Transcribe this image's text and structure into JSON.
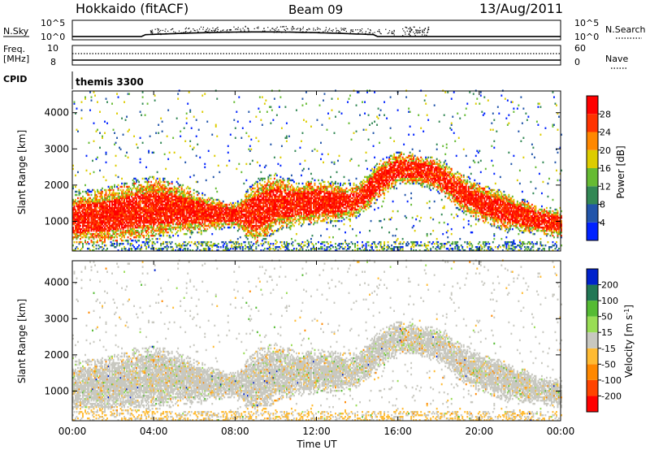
{
  "header": {
    "station": "Hokkaido (fitACF)",
    "beam": "Beam 09",
    "date": "13/Aug/2011"
  },
  "top_panels": {
    "nsky_label": "N.Sky",
    "nsearch_label": "N.Search",
    "freq_label_1": "Freq.",
    "freq_label_2": "[MHz]",
    "nave_label": "Nave",
    "cpid_label": "CPID",
    "cpid_value": "themis 3300",
    "nsky_ticks": [
      "10^5",
      "10^0"
    ],
    "nsearch_ticks": [
      "10^5",
      "10^0"
    ],
    "freq_ticks": [
      "10",
      "8"
    ],
    "nave_ticks": [
      "60",
      "0"
    ]
  },
  "chart_data": [
    {
      "type": "heatmap",
      "name": "power",
      "ylabel": "Slant Range [km]",
      "xlabel": "Time UT",
      "x_ticks": [
        "00:00",
        "04:00",
        "08:00",
        "12:00",
        "16:00",
        "20:00",
        "00:00"
      ],
      "xlim_hours": [
        0,
        24
      ],
      "ylim": [
        180,
        4600
      ],
      "y_ticks": [
        1000,
        2000,
        3000,
        4000
      ],
      "colorbar_label": "Power [dB]",
      "colorbar_ticks": [
        "4",
        "8",
        "12",
        "16",
        "20",
        "24",
        "28"
      ],
      "colorbar_colors": [
        "#0022ff",
        "#2255aa",
        "#338855",
        "#66bb33",
        "#ddcc00",
        "#ff8800",
        "#ff3300",
        "#ff0000"
      ],
      "bands": [
        {
          "t": [
            0,
            1.5,
            3,
            4,
            5,
            6,
            7,
            8,
            9,
            10,
            11,
            12,
            13,
            14,
            15,
            16,
            17,
            18,
            19,
            20,
            21,
            22,
            23,
            24
          ],
          "lo": [
            500,
            520,
            600,
            700,
            750,
            800,
            850,
            900,
            500,
            900,
            1000,
            1050,
            1100,
            1200,
            1700,
            2100,
            2100,
            1900,
            1400,
            1100,
            900,
            800,
            700,
            600
          ],
          "hi": [
            1600,
            1700,
            1900,
            2000,
            1900,
            1700,
            1500,
            1400,
            1900,
            2100,
            1900,
            2000,
            1900,
            1900,
            2500,
            2800,
            2700,
            2600,
            2200,
            1900,
            1700,
            1500,
            1300,
            1200
          ]
        }
      ]
    },
    {
      "type": "heatmap",
      "name": "velocity",
      "ylabel": "Slant Range [km]",
      "xlabel": "Time UT",
      "x_ticks": [
        "00:00",
        "04:00",
        "08:00",
        "12:00",
        "16:00",
        "20:00",
        "00:00"
      ],
      "xlim_hours": [
        0,
        24
      ],
      "ylim": [
        180,
        4600
      ],
      "y_ticks": [
        1000,
        2000,
        3000,
        4000
      ],
      "colorbar_label": "Velocity [m s^-1]",
      "colorbar_ticks": [
        "200",
        "100",
        "50",
        "15",
        "-15",
        "-50",
        "-100",
        "-200"
      ],
      "colorbar_colors": [
        "#0022cc",
        "#227755",
        "#55bb33",
        "#99dd55",
        "#c8c8c0",
        "#ffbb33",
        "#ff8800",
        "#ff4400",
        "#ff0000"
      ]
    }
  ]
}
